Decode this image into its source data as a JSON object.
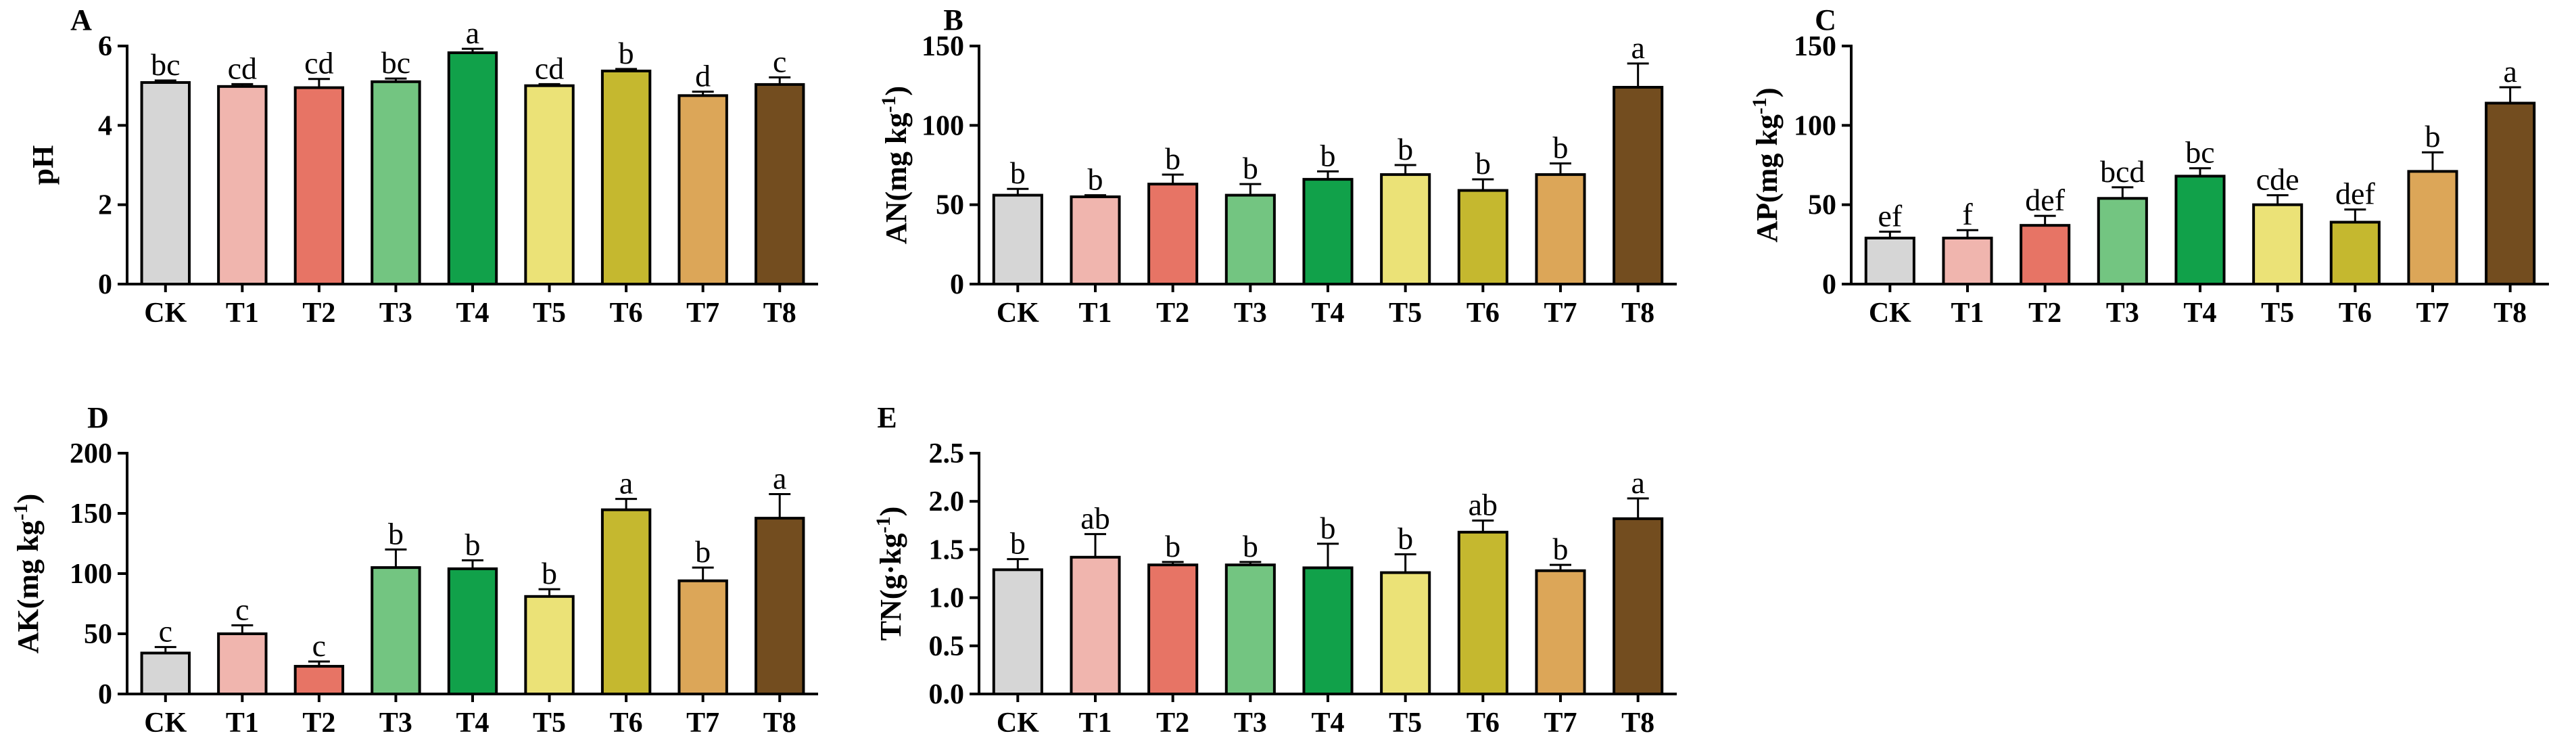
{
  "chart_data": [
    {
      "type": "bar",
      "panel": "A",
      "title": "",
      "xlabel": "",
      "ylabel": "pH",
      "ylim": [
        0,
        6
      ],
      "yticks": [
        0,
        2,
        4,
        6
      ],
      "categories": [
        "CK",
        "T1",
        "T2",
        "T3",
        "T4",
        "T5",
        "T6",
        "T7",
        "T8"
      ],
      "values": [
        5.08,
        4.98,
        4.95,
        5.1,
        5.83,
        5.0,
        5.37,
        4.75,
        5.03
      ],
      "errors": [
        0.05,
        0.06,
        0.22,
        0.08,
        0.1,
        0.04,
        0.05,
        0.1,
        0.18
      ],
      "labels": [
        "bc",
        "cd",
        "cd",
        "bc",
        "a",
        "cd",
        "b",
        "d",
        "c"
      ]
    },
    {
      "type": "bar",
      "panel": "B",
      "title": "",
      "xlabel": "",
      "ylabel": "AN(mg kg",
      "ylabel_sup": "-1",
      "ylabel_end": ")",
      "ylim": [
        0,
        150
      ],
      "yticks": [
        0,
        50,
        100,
        150
      ],
      "categories": [
        "CK",
        "T1",
        "T2",
        "T3",
        "T4",
        "T5",
        "T6",
        "T7",
        "T8"
      ],
      "values": [
        56,
        55,
        63,
        56,
        66,
        69,
        59,
        69,
        124
      ],
      "errors": [
        4,
        1,
        6,
        7,
        5,
        6,
        7,
        7,
        15
      ],
      "labels": [
        "b",
        "b",
        "b",
        "b",
        "b",
        "b",
        "b",
        "b",
        "a"
      ]
    },
    {
      "type": "bar",
      "panel": "C",
      "title": "",
      "xlabel": "",
      "ylabel": "AP(mg kg",
      "ylabel_sup": "-1",
      "ylabel_end": ")",
      "ylim": [
        0,
        150
      ],
      "yticks": [
        0,
        50,
        100,
        150
      ],
      "categories": [
        "CK",
        "T1",
        "T2",
        "T3",
        "T4",
        "T5",
        "T6",
        "T7",
        "T8"
      ],
      "values": [
        29,
        29,
        37,
        54,
        68,
        50,
        39,
        71,
        114
      ],
      "errors": [
        4,
        5,
        6,
        7,
        5,
        6,
        8,
        12,
        10
      ],
      "labels": [
        "ef",
        "f",
        "def",
        "bcd",
        "bc",
        "cde",
        "def",
        "b",
        "a"
      ]
    },
    {
      "type": "bar",
      "panel": "D",
      "title": "",
      "xlabel": "",
      "ylabel": "AK(mg kg",
      "ylabel_sup": "-1",
      "ylabel_end": ")",
      "ylim": [
        0,
        200
      ],
      "yticks": [
        0,
        50,
        100,
        150,
        200
      ],
      "categories": [
        "CK",
        "T1",
        "T2",
        "T3",
        "T4",
        "T5",
        "T6",
        "T7",
        "T8"
      ],
      "values": [
        34,
        50,
        23,
        105,
        104,
        81,
        153,
        94,
        146
      ],
      "errors": [
        5,
        7,
        4,
        15,
        7,
        6,
        9,
        11,
        20
      ],
      "labels": [
        "c",
        "c",
        "c",
        "b",
        "b",
        "b",
        "a",
        "b",
        "a"
      ]
    },
    {
      "type": "bar",
      "panel": "E",
      "title": "",
      "xlabel": "",
      "ylabel": "TN(g·kg",
      "ylabel_sup": "-1",
      "ylabel_end": ")",
      "ylim": [
        0,
        2.5
      ],
      "yticks": [
        0.0,
        0.5,
        1.0,
        1.5,
        2.0,
        2.5
      ],
      "ytick_labels": [
        "0.0",
        "0.5",
        "1.0",
        "1.5",
        "2.0",
        "2.5"
      ],
      "categories": [
        "CK",
        "T1",
        "T2",
        "T3",
        "T4",
        "T5",
        "T6",
        "T7",
        "T8"
      ],
      "values": [
        1.29,
        1.42,
        1.34,
        1.34,
        1.31,
        1.26,
        1.68,
        1.28,
        1.82
      ],
      "errors": [
        0.11,
        0.24,
        0.03,
        0.03,
        0.25,
        0.19,
        0.12,
        0.06,
        0.21
      ],
      "labels": [
        "b",
        "ab",
        "b",
        "b",
        "b",
        "b",
        "ab",
        "b",
        "a"
      ]
    }
  ],
  "colors": {
    "bars": [
      "#d6d6d6",
      "#f0b5ae",
      "#e77465",
      "#73c581",
      "#11a14a",
      "#ebe277",
      "#c5b82f",
      "#dca658",
      "#734d1f"
    ],
    "outline": "#000000"
  }
}
